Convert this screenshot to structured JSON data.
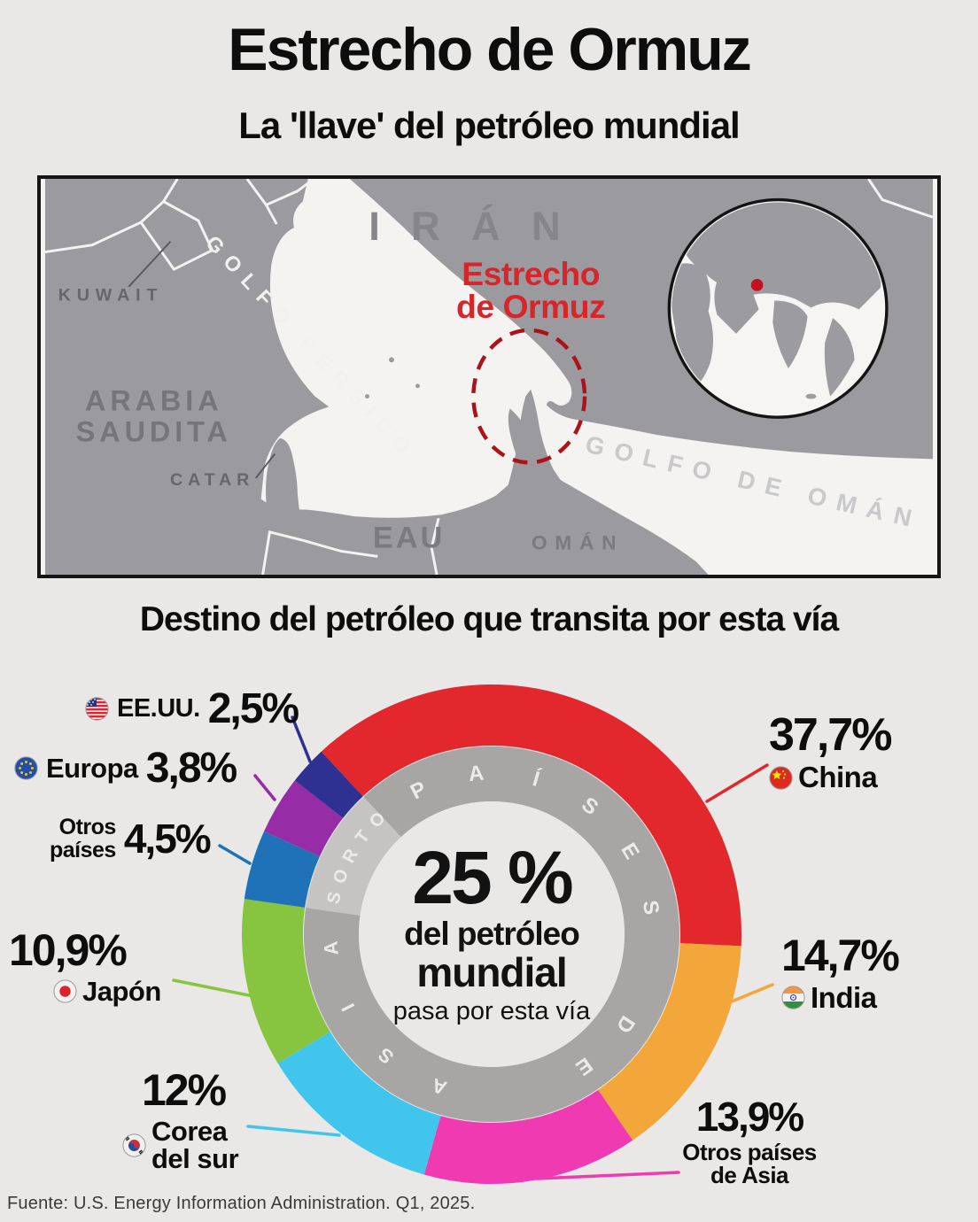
{
  "title": "Estrecho de Ormuz",
  "subtitle": "La 'llave' del petróleo mundial",
  "section_title": "Destino del petróleo que transita por esta vía",
  "footer": "Fuente: U.S. Energy Information Administration. Q1, 2025.",
  "map": {
    "labels": [
      {
        "id": "iran",
        "text": "IRÁN"
      },
      {
        "id": "kuwait",
        "text": "KUWAIT"
      },
      {
        "id": "arabia-1",
        "text": "ARABIA"
      },
      {
        "id": "arabia-2",
        "text": "SAUDITA"
      },
      {
        "id": "catar",
        "text": "CATAR"
      },
      {
        "id": "eau",
        "text": "EAU"
      },
      {
        "id": "oman",
        "text": "OMÁN"
      },
      {
        "id": "golfo-persico",
        "text": "GOLFO PÉRSICO"
      },
      {
        "id": "golfo-oman",
        "text": "GOLFO DE OMÁN"
      }
    ],
    "callout": {
      "line1": "Estrecho",
      "line2": "de Ormuz"
    }
  },
  "chart_data": {
    "type": "pie",
    "title": "Destino del petróleo que transita por esta vía",
    "units": "%",
    "start_angle_deg": -43,
    "center": {
      "value": "25 %",
      "line2": "del petróleo",
      "line3": "mundial",
      "line4": "pasa por esta vía"
    },
    "ring_labels": {
      "asia": "PAÍSES DE ASIA",
      "otros": "OTROS"
    },
    "series": [
      {
        "id": "china",
        "label": "China",
        "label_lines": [
          "China"
        ],
        "value": 37.7,
        "display": "37,7%",
        "color": "#e2282d",
        "flag": "china",
        "group": "asia"
      },
      {
        "id": "india",
        "label": "India",
        "label_lines": [
          "India"
        ],
        "value": 14.7,
        "display": "14,7%",
        "color": "#f3a73b",
        "flag": "india",
        "group": "asia"
      },
      {
        "id": "otros-asia",
        "label": "Otros países de Asia",
        "label_lines": [
          "Otros países",
          "de Asia"
        ],
        "value": 13.9,
        "display": "13,9%",
        "color": "#f03ab2",
        "flag": null,
        "group": "asia"
      },
      {
        "id": "corea",
        "label": "Corea del sur",
        "label_lines": [
          "Corea",
          "del sur"
        ],
        "value": 12,
        "display": "12%",
        "color": "#41c5ec",
        "flag": "korea",
        "group": "asia"
      },
      {
        "id": "japon",
        "label": "Japón",
        "label_lines": [
          "Japón"
        ],
        "value": 10.9,
        "display": "10,9%",
        "color": "#87c440",
        "flag": "japan",
        "group": "asia"
      },
      {
        "id": "otros",
        "label": "Otros países",
        "label_lines": [
          "Otros",
          "países"
        ],
        "value": 4.5,
        "display": "4,5%",
        "color": "#1f72b8",
        "flag": null,
        "group": "otros"
      },
      {
        "id": "europa",
        "label": "Europa",
        "label_lines": [
          "Europa"
        ],
        "value": 3.8,
        "display": "3,8%",
        "color": "#962ca6",
        "flag": "eu",
        "group": "otros"
      },
      {
        "id": "eeuu",
        "label": "EE.UU.",
        "label_lines": [
          "EE.UU."
        ],
        "value": 2.5,
        "display": "2,5%",
        "color": "#2e3191",
        "flag": "us",
        "group": "otros"
      }
    ]
  },
  "colors": {
    "background": "#e9e8e6",
    "ring_dark": "#a8a6a5",
    "ring_light": "#c6c4c3",
    "center_bg": "#eae8e6",
    "map_land": "#9b9b9f",
    "map_sea": "#f4f3f1",
    "accent_red": "#d6252b"
  }
}
